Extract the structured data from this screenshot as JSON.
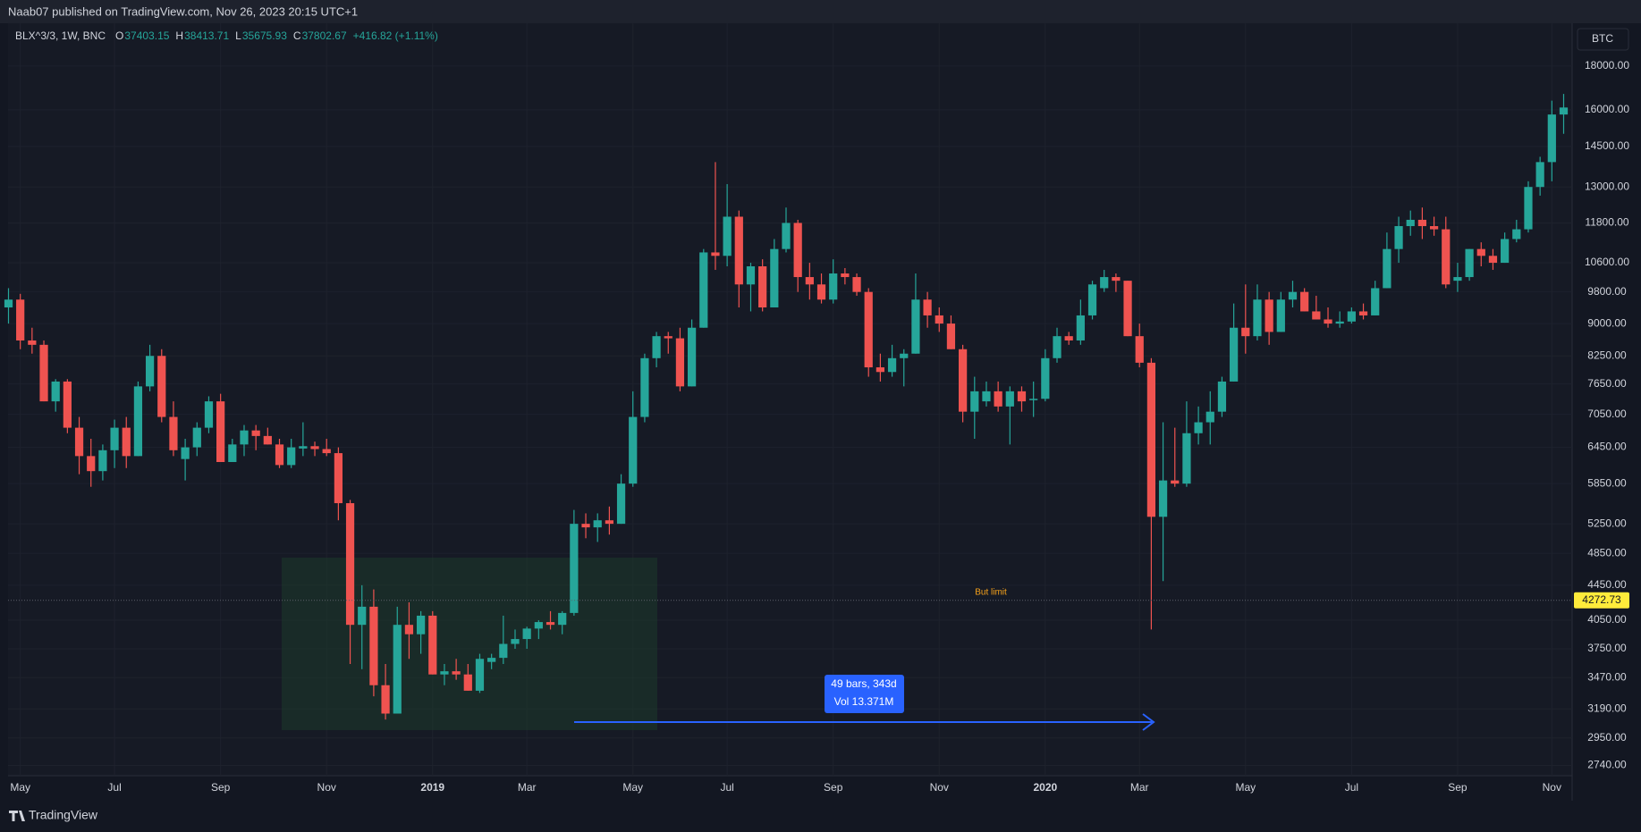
{
  "header": {
    "published": "Naab07 published on TradingView.com, Nov 26, 2023 20:15 UTC+1"
  },
  "legend": {
    "symbol": "BLX^3/3, 1W, BNC",
    "items": [
      {
        "label": "O",
        "value": "37403.15"
      },
      {
        "label": "H",
        "value": "38413.71"
      },
      {
        "label": "L",
        "value": "35675.93"
      },
      {
        "label": "C",
        "value": "37802.67"
      }
    ],
    "change": "+416.82 (+1.11%)"
  },
  "currency_button": "BTC",
  "drawings": {
    "measure": [
      "49 bars, 343d",
      "Vol 13.371M"
    ]
  },
  "footer": {
    "brand": "TradingView"
  },
  "chart_data": {
    "type": "candlestick",
    "log_scale": true,
    "grid": true,
    "up_color": "#26a69a",
    "down_color": "#ef5350",
    "ylim": [
      2665,
      20200
    ],
    "yticks": [
      {
        "value": 18000,
        "label": "18000.00"
      },
      {
        "value": 16000,
        "label": "16000.00"
      },
      {
        "value": 14500,
        "label": "14500.00"
      },
      {
        "value": 13000,
        "label": "13000.00"
      },
      {
        "value": 11800,
        "label": "11800.00"
      },
      {
        "value": 10600,
        "label": "10600.00"
      },
      {
        "value": 9800,
        "label": "9800.00"
      },
      {
        "value": 9000,
        "label": "9000.00"
      },
      {
        "value": 8250,
        "label": "8250.00"
      },
      {
        "value": 7650,
        "label": "7650.00"
      },
      {
        "value": 7050,
        "label": "7050.00"
      },
      {
        "value": 6450,
        "label": "6450.00"
      },
      {
        "value": 5850,
        "label": "5850.00"
      },
      {
        "value": 5250,
        "label": "5250.00"
      },
      {
        "value": 4850,
        "label": "4850.00"
      },
      {
        "value": 4450,
        "label": "4450.00"
      },
      {
        "value": 4050,
        "label": "4050.00"
      },
      {
        "value": 3750,
        "label": "3750.00"
      },
      {
        "value": 3470,
        "label": "3470.00"
      },
      {
        "value": 3190,
        "label": "3190.00"
      },
      {
        "value": 2950,
        "label": "2950.00"
      },
      {
        "value": 2740,
        "label": "2740.00"
      }
    ],
    "price_line": {
      "value": 4272.73,
      "label": "4272.73",
      "text": "But limit"
    },
    "categories": [
      null,
      "May",
      null,
      null,
      null,
      null,
      null,
      null,
      null,
      "Jul",
      null,
      null,
      null,
      null,
      null,
      null,
      null,
      null,
      "Sep",
      null,
      null,
      null,
      null,
      null,
      null,
      null,
      null,
      "Nov",
      null,
      null,
      null,
      null,
      null,
      null,
      null,
      null,
      "2019",
      null,
      null,
      null,
      null,
      null,
      null,
      null,
      "Mar",
      null,
      null,
      null,
      null,
      null,
      null,
      null,
      null,
      "May",
      null,
      null,
      null,
      null,
      null,
      null,
      null,
      "Jul",
      null,
      null,
      null,
      null,
      null,
      null,
      null,
      null,
      "Sep",
      null,
      null,
      null,
      null,
      null,
      null,
      null,
      null,
      "Nov",
      null,
      null,
      null,
      null,
      null,
      null,
      null,
      null,
      "2020",
      null,
      null,
      null,
      null,
      null,
      null,
      null,
      "Mar",
      null,
      null,
      null,
      null,
      null,
      null,
      null,
      null,
      "May",
      null,
      null,
      null,
      null,
      null,
      null,
      null,
      null,
      "Jul",
      null,
      null,
      null,
      null,
      null,
      null,
      null,
      null,
      "Sep",
      null,
      null,
      null,
      null,
      null,
      null,
      null,
      "Nov",
      null
    ],
    "open": [
      9400,
      9600,
      8600,
      8500,
      7300,
      7700,
      6800,
      6300,
      6050,
      6400,
      6800,
      6300,
      7600,
      8250,
      7000,
      6250,
      6450,
      6800,
      7300,
      6200,
      6500,
      6750,
      6650,
      6500,
      6150,
      6430,
      6470,
      6420,
      6350,
      5550,
      4000,
      4200,
      3400,
      3150,
      4000,
      3900,
      4100,
      3500,
      3530,
      3500,
      3350,
      3620,
      3660,
      3800,
      3850,
      3960,
      4030,
      4000,
      4130,
      5250,
      5200,
      5300,
      5250,
      5850,
      7000,
      8200,
      8700,
      8650,
      7600,
      8900,
      10900,
      10800,
      12000,
      10000,
      10500,
      9400,
      11000,
      11800,
      10200,
      10000,
      9600,
      10300,
      10200,
      9800,
      8000,
      7900,
      8200,
      8300,
      9600,
      9200,
      9000,
      8400,
      7100,
      7300,
      7500,
      7200,
      7500,
      7330,
      7350,
      8200,
      8700,
      8600,
      9200,
      9900,
      10200,
      10100,
      8700,
      8100,
      5350,
      5900,
      5850,
      6700,
      6900,
      7100,
      7700,
      8900,
      8700,
      9600,
      8800,
      9600,
      9800,
      9300,
      9100,
      9000,
      9050,
      9300,
      9200,
      9900,
      11000,
      11700,
      11900,
      11700,
      11600,
      10100,
      10200,
      11000,
      10800,
      10600,
      11300,
      11600,
      13000,
      13900,
      15800
    ],
    "high": [
      9900,
      9750,
      8900,
      8600,
      7750,
      7750,
      7000,
      6600,
      6500,
      6950,
      7000,
      7700,
      8500,
      8400,
      7300,
      6600,
      6900,
      7400,
      7450,
      6600,
      6850,
      6850,
      6800,
      6600,
      6600,
      6900,
      6550,
      6600,
      6450,
      5600,
      4450,
      4400,
      3600,
      4200,
      4250,
      4150,
      4150,
      3600,
      3650,
      3600,
      3700,
      3700,
      4100,
      3950,
      3980,
      4050,
      4150,
      4150,
      5450,
      5400,
      5400,
      5500,
      6000,
      7500,
      8300,
      8800,
      8800,
      8900,
      9100,
      11000,
      13900,
      13100,
      12200,
      10600,
      10700,
      11300,
      12300,
      11900,
      10600,
      10300,
      10700,
      10450,
      10300,
      9900,
      8300,
      8500,
      8400,
      10300,
      9800,
      9400,
      9200,
      8500,
      7800,
      7700,
      7700,
      7600,
      7600,
      7700,
      8400,
      8900,
      8800,
      9600,
      10100,
      10400,
      10300,
      10100,
      9000,
      8200,
      6900,
      6800,
      7300,
      7200,
      7500,
      7800,
      9500,
      10000,
      10000,
      9800,
      9800,
      10100,
      9900,
      9700,
      9400,
      9300,
      9400,
      9500,
      10100,
      11500,
      12000,
      12200,
      12300,
      12000,
      12000,
      10600,
      11000,
      11200,
      11000,
      11500,
      11900,
      13200,
      14100,
      16400,
      16700
    ],
    "low": [
      9000,
      8400,
      8300,
      7300,
      7100,
      6700,
      6000,
      5800,
      5900,
      6100,
      6100,
      6300,
      7500,
      6900,
      6300,
      5900,
      6300,
      6700,
      6200,
      6200,
      6300,
      6400,
      6500,
      6100,
      6100,
      6300,
      6300,
      6300,
      5300,
      3600,
      3550,
      3300,
      3100,
      3150,
      3650,
      3700,
      3500,
      3400,
      3450,
      3350,
      3330,
      3550,
      3600,
      3750,
      3750,
      3850,
      3950,
      3900,
      4100,
      5050,
      5000,
      5100,
      5250,
      5800,
      6900,
      8000,
      8300,
      7500,
      7600,
      8900,
      10400,
      10500,
      9400,
      9300,
      9300,
      9400,
      10900,
      9800,
      9600,
      9500,
      9500,
      10000,
      9700,
      7800,
      7700,
      7800,
      7600,
      8300,
      8900,
      8800,
      8400,
      6900,
      6600,
      7200,
      7100,
      6500,
      7100,
      7000,
      7300,
      8100,
      8500,
      8500,
      9100,
      9800,
      9800,
      8700,
      8000,
      3950,
      4500,
      5800,
      5800,
      6500,
      6500,
      7000,
      7700,
      8300,
      8600,
      8500,
      8800,
      9400,
      9300,
      9100,
      8900,
      8900,
      9000,
      9100,
      9200,
      9900,
      10600,
      11400,
      11300,
      11400,
      9900,
      9800,
      10100,
      10500,
      10400,
      10600,
      11200,
      11500,
      12700,
      13200,
      15000
    ],
    "close": [
      9600,
      8600,
      8500,
      7300,
      7700,
      6800,
      6300,
      6050,
      6400,
      6800,
      6300,
      7600,
      8250,
      7000,
      6400,
      6450,
      6800,
      7300,
      6200,
      6500,
      6750,
      6650,
      6500,
      6150,
      6450,
      6470,
      6420,
      6350,
      5550,
      4000,
      4200,
      3400,
      3150,
      4000,
      3900,
      4100,
      3500,
      3530,
      3500,
      3350,
      3650,
      3660,
      3800,
      3850,
      3960,
      4030,
      4000,
      4130,
      5250,
      5200,
      5300,
      5250,
      5850,
      7000,
      8200,
      8700,
      8650,
      7600,
      8900,
      10900,
      10800,
      12000,
      10000,
      10500,
      9400,
      11000,
      11800,
      10200,
      10000,
      9600,
      10300,
      10200,
      9800,
      8000,
      7900,
      8200,
      8300,
      9600,
      9200,
      9000,
      8400,
      7100,
      7500,
      7500,
      7200,
      7500,
      7300,
      7350,
      8200,
      8700,
      8600,
      9200,
      10000,
      10200,
      10100,
      8700,
      8100,
      5350,
      5900,
      5850,
      6700,
      6900,
      7100,
      7700,
      8900,
      8700,
      9600,
      8800,
      9600,
      9800,
      9300,
      9100,
      9000,
      9050,
      9300,
      9200,
      9900,
      11000,
      11700,
      11900,
      11700,
      11600,
      10000,
      10200,
      11000,
      10800,
      10600,
      11300,
      11600,
      13000,
      13900,
      15800,
      16100
    ]
  }
}
